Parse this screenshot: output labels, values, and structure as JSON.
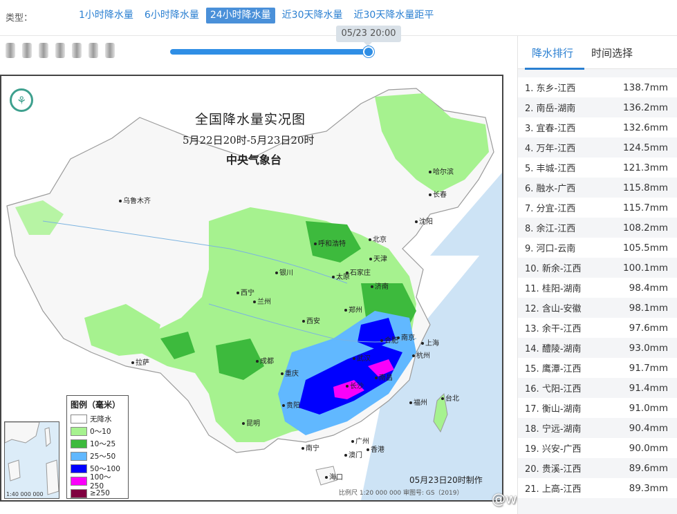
{
  "type_bar": {
    "label": "类型：",
    "tabs": [
      {
        "label": "1小时降水量",
        "active": false
      },
      {
        "label": "6小时降水量",
        "active": false
      },
      {
        "label": "24小时降水量",
        "active": true
      },
      {
        "label": "近30天降水量",
        "active": false
      },
      {
        "label": "近30天降水量距平",
        "active": false
      }
    ]
  },
  "slider": {
    "time_label": "05/23 20:00",
    "progress": 1.0
  },
  "map": {
    "title": "全国降水量实况图",
    "subtitle": "5月22日20时-5月23日20时",
    "agency": "中央气象台",
    "logo_icon": "cma-logo-icon",
    "cities": [
      "乌鲁木齐",
      "哈尔滨",
      "长春",
      "沈阳",
      "呼和浩特",
      "北京",
      "天津",
      "银川",
      "太原",
      "石家庄",
      "济南",
      "西宁",
      "兰州",
      "西安",
      "郑州",
      "合肥",
      "南京",
      "上海",
      "杭州",
      "武汉",
      "成都",
      "拉萨",
      "重庆",
      "贵阳",
      "长沙",
      "南昌",
      "福州",
      "台北",
      "昆明",
      "南宁",
      "广州",
      "澳门",
      "香港",
      "海口"
    ],
    "legend": {
      "title": "图例（毫米）",
      "items": [
        {
          "label": "无降水",
          "color": "#ffffff"
        },
        {
          "label": "0～10",
          "color": "#a6f28f"
        },
        {
          "label": "10～25",
          "color": "#3dba3d"
        },
        {
          "label": "25～50",
          "color": "#61b8ff"
        },
        {
          "label": "50～100",
          "color": "#0000ff"
        },
        {
          "label": "100～250",
          "color": "#fa00fa"
        },
        {
          "label": "≥250",
          "color": "#800040"
        }
      ]
    },
    "inset": {
      "label": "南海诸岛",
      "scale": "1:40 000 000"
    },
    "made_at": "05月23日20时制作",
    "scale_note": "比例尺 1:20 000 000    审图号: GS（2019）",
    "watermark": "@weatherman_信欣"
  },
  "ranking": {
    "tabs": [
      {
        "label": "降水排行",
        "active": true
      },
      {
        "label": "时间选择",
        "active": false
      }
    ],
    "items": [
      {
        "rank": "1.",
        "place": "东乡-江西",
        "amount": "138.7mm"
      },
      {
        "rank": "2.",
        "place": "南岳-湖南",
        "amount": "136.2mm"
      },
      {
        "rank": "3.",
        "place": "宜春-江西",
        "amount": "132.6mm"
      },
      {
        "rank": "4.",
        "place": "万年-江西",
        "amount": "124.5mm"
      },
      {
        "rank": "5.",
        "place": "丰城-江西",
        "amount": "121.3mm"
      },
      {
        "rank": "6.",
        "place": "融水-广西",
        "amount": "115.8mm"
      },
      {
        "rank": "7.",
        "place": "分宜-江西",
        "amount": "115.7mm"
      },
      {
        "rank": "8.",
        "place": "余江-江西",
        "amount": "108.2mm"
      },
      {
        "rank": "9.",
        "place": "河口-云南",
        "amount": "105.5mm"
      },
      {
        "rank": "10.",
        "place": "新余-江西",
        "amount": "100.1mm"
      },
      {
        "rank": "11.",
        "place": "桂阳-湖南",
        "amount": "98.4mm"
      },
      {
        "rank": "12.",
        "place": "含山-安徽",
        "amount": "98.1mm"
      },
      {
        "rank": "13.",
        "place": "余干-江西",
        "amount": "97.6mm"
      },
      {
        "rank": "14.",
        "place": "醴陵-湖南",
        "amount": "93.0mm"
      },
      {
        "rank": "15.",
        "place": "鹰潭-江西",
        "amount": "91.7mm"
      },
      {
        "rank": "16.",
        "place": "弋阳-江西",
        "amount": "91.4mm"
      },
      {
        "rank": "17.",
        "place": "衡山-湖南",
        "amount": "91.0mm"
      },
      {
        "rank": "18.",
        "place": "宁远-湖南",
        "amount": "90.4mm"
      },
      {
        "rank": "19.",
        "place": "兴安-广西",
        "amount": "90.0mm"
      },
      {
        "rank": "20.",
        "place": "贵溪-江西",
        "amount": "89.6mm"
      },
      {
        "rank": "21.",
        "place": "上高-江西",
        "amount": "89.3mm"
      }
    ]
  }
}
